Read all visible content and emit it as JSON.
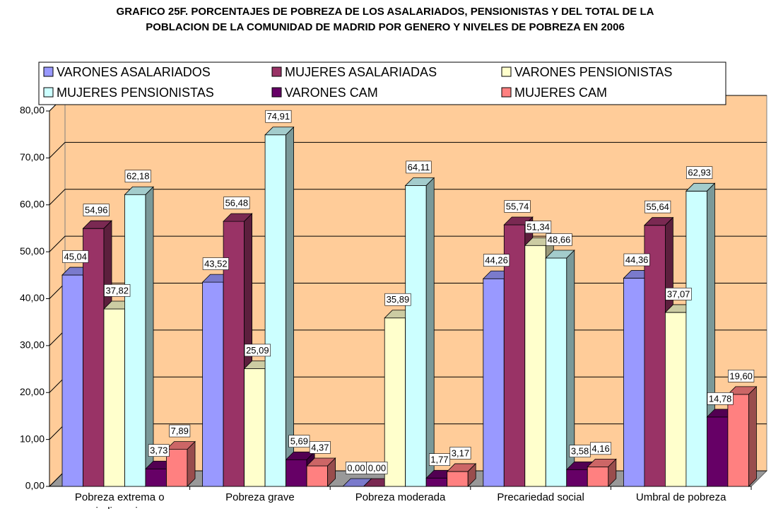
{
  "chart_data": {
    "type": "bar3d",
    "title": "GRAFICO 25F. PORCENTAJES DE POBREZA DE LOS ASALARIADOS, PENSIONISTAS Y DEL TOTAL DE LA POBLACION DE LA COMUNIDAD DE MADRID POR GENERO Y NIVELES DE POBREZA EN 2006",
    "categories": [
      "Pobreza extrema o indigencia",
      "Pobreza grave",
      "Pobreza moderada",
      "Precariedad social",
      "Umbral de pobreza"
    ],
    "series": [
      {
        "name": "VARONES ASALARIADOS",
        "color": "#9999ff",
        "values": [
          45.04,
          43.52,
          0.0,
          44.26,
          44.36
        ],
        "value_labels": [
          "45,04",
          "43,52",
          "0,00",
          "44,26",
          "44,36"
        ]
      },
      {
        "name": "MUJERES ASALARIADAS",
        "color": "#993366",
        "values": [
          54.96,
          56.48,
          0.0,
          55.74,
          55.64
        ],
        "value_labels": [
          "54,96",
          "56,48",
          "0,00",
          "55,74",
          "55,64"
        ]
      },
      {
        "name": "VARONES PENSIONISTAS",
        "color": "#ffffcc",
        "values": [
          37.82,
          25.09,
          35.89,
          51.34,
          37.07
        ],
        "value_labels": [
          "37,82",
          "25,09",
          "35,89",
          "51,34",
          "37,07"
        ]
      },
      {
        "name": "MUJERES PENSIONISTAS",
        "color": "#ccffff",
        "values": [
          62.18,
          74.91,
          64.11,
          48.66,
          62.93
        ],
        "value_labels": [
          "62,18",
          "74,91",
          "64,11",
          "48,66",
          "62,93"
        ]
      },
      {
        "name": "VARONES CAM",
        "color": "#660066",
        "values": [
          3.73,
          5.69,
          1.77,
          3.58,
          14.78
        ],
        "value_labels": [
          "3,73",
          "5,69",
          "1,77",
          "3,58",
          "14,78"
        ]
      },
      {
        "name": "MUJERES CAM",
        "color": "#ff8080",
        "values": [
          7.89,
          4.37,
          3.17,
          4.16,
          19.6
        ],
        "value_labels": [
          "7,89",
          "4,37",
          "3,17",
          "4,16",
          "19,60"
        ]
      }
    ],
    "ylim": [
      0,
      80
    ],
    "yticks": [
      {
        "value": 0,
        "label": "0,00"
      },
      {
        "value": 10,
        "label": "10,00"
      },
      {
        "value": 20,
        "label": "20,00"
      },
      {
        "value": 30,
        "label": "30,00"
      },
      {
        "value": 40,
        "label": "40,00"
      },
      {
        "value": 50,
        "label": "50,00"
      },
      {
        "value": 60,
        "label": "60,00"
      },
      {
        "value": 70,
        "label": "70,00"
      },
      {
        "value": 80,
        "label": "80,00"
      }
    ],
    "grid": true,
    "wall_color": "#ffcc99",
    "floor_color": "#999999"
  }
}
